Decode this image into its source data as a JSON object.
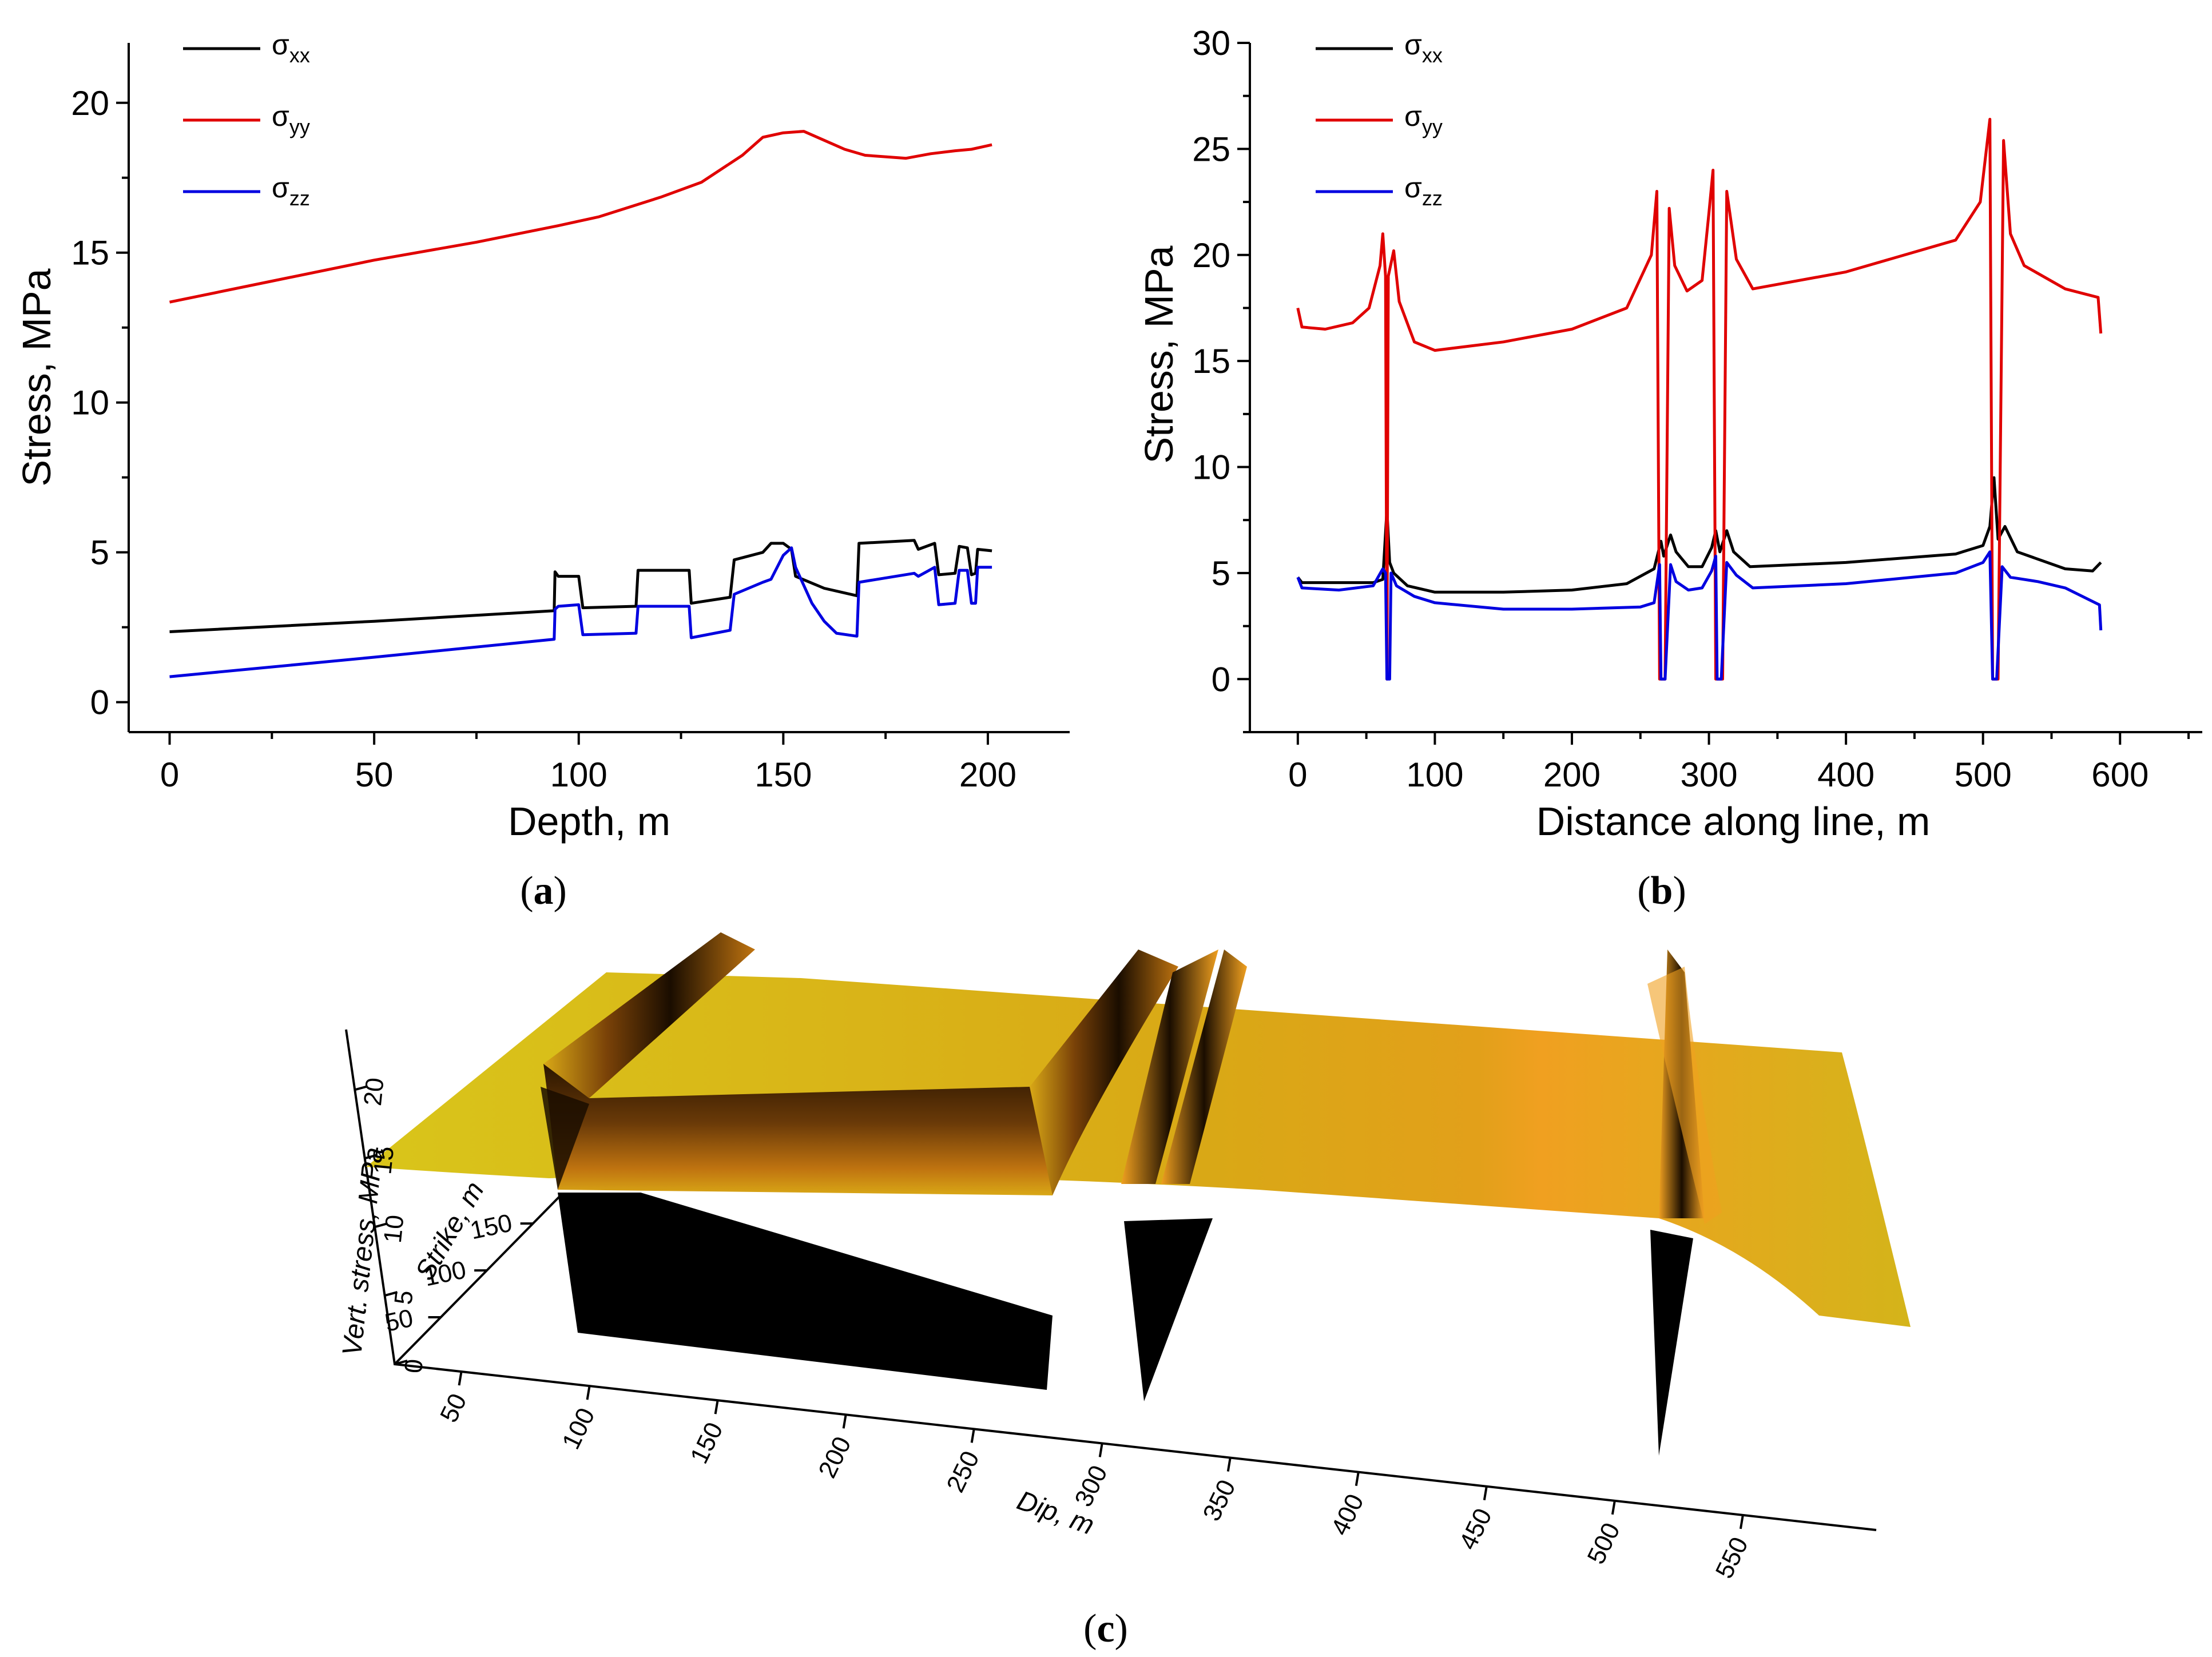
{
  "chart_data": [
    {
      "id": "a",
      "type": "line",
      "panel_label": "a",
      "xlabel": "Depth, m",
      "ylabel": "Stress, MPa",
      "xlim": [
        -10,
        220
      ],
      "ylim": [
        -1,
        22
      ],
      "xticks": [
        0,
        50,
        100,
        150,
        200
      ],
      "yticks": [
        0,
        5,
        10,
        15,
        20
      ],
      "legend_position": "top-left",
      "series": [
        {
          "name": "σxx",
          "symbol": "σ",
          "subscript": "xx",
          "color": "#000000",
          "points": [
            [
              0,
              2.35
            ],
            [
              50,
              2.7
            ],
            [
              94,
              3.05
            ],
            [
              94.2,
              4.35
            ],
            [
              95,
              4.2
            ],
            [
              100,
              4.2
            ],
            [
              101,
              3.15
            ],
            [
              114,
              3.2
            ],
            [
              114.5,
              4.4
            ],
            [
              127,
              4.4
            ],
            [
              127.5,
              3.3
            ],
            [
              137,
              3.5
            ],
            [
              138,
              4.75
            ],
            [
              145,
              5.0
            ],
            [
              147,
              5.3
            ],
            [
              150,
              5.3
            ],
            [
              152,
              5.1
            ],
            [
              153,
              4.2
            ],
            [
              160,
              3.8
            ],
            [
              168,
              3.55
            ],
            [
              168.5,
              5.3
            ],
            [
              182,
              5.4
            ],
            [
              183,
              5.1
            ],
            [
              187,
              5.3
            ],
            [
              188,
              4.25
            ],
            [
              192,
              4.3
            ],
            [
              193,
              5.2
            ],
            [
              195,
              5.15
            ],
            [
              196,
              4.25
            ],
            [
              197,
              4.3
            ],
            [
              197.5,
              5.1
            ],
            [
              201,
              5.05
            ]
          ]
        },
        {
          "name": "σyy",
          "symbol": "σ",
          "subscript": "yy",
          "color": "#e00000",
          "points": [
            [
              0,
              13.35
            ],
            [
              25,
              14.05
            ],
            [
              50,
              14.75
            ],
            [
              75,
              15.35
            ],
            [
              95,
              15.9
            ],
            [
              105,
              16.2
            ],
            [
              120,
              16.85
            ],
            [
              130,
              17.35
            ],
            [
              140,
              18.25
            ],
            [
              145,
              18.85
            ],
            [
              150,
              19.0
            ],
            [
              155,
              19.05
            ],
            [
              160,
              18.75
            ],
            [
              165,
              18.45
            ],
            [
              170,
              18.25
            ],
            [
              175,
              18.2
            ],
            [
              180,
              18.15
            ],
            [
              186,
              18.3
            ],
            [
              192,
              18.4
            ],
            [
              196,
              18.45
            ],
            [
              201,
              18.6
            ]
          ]
        },
        {
          "name": "σzz",
          "symbol": "σ",
          "subscript": "zz",
          "color": "#0000e0",
          "points": [
            [
              0,
              0.85
            ],
            [
              50,
              1.5
            ],
            [
              94,
              2.1
            ],
            [
              94.2,
              3.1
            ],
            [
              95,
              3.2
            ],
            [
              100,
              3.25
            ],
            [
              101,
              2.25
            ],
            [
              114,
              2.3
            ],
            [
              114.5,
              3.2
            ],
            [
              127,
              3.2
            ],
            [
              127.5,
              2.15
            ],
            [
              137,
              2.4
            ],
            [
              138,
              3.6
            ],
            [
              145,
              4.0
            ],
            [
              147,
              4.1
            ],
            [
              150,
              4.9
            ],
            [
              152,
              5.15
            ],
            [
              153,
              4.5
            ],
            [
              157,
              3.3
            ],
            [
              160,
              2.7
            ],
            [
              163,
              2.3
            ],
            [
              168,
              2.2
            ],
            [
              168.5,
              4.0
            ],
            [
              182,
              4.3
            ],
            [
              183,
              4.2
            ],
            [
              187,
              4.5
            ],
            [
              188,
              3.25
            ],
            [
              192,
              3.3
            ],
            [
              193,
              4.4
            ],
            [
              195,
              4.4
            ],
            [
              196,
              3.3
            ],
            [
              197,
              3.3
            ],
            [
              197.5,
              4.5
            ],
            [
              201,
              4.5
            ]
          ]
        }
      ]
    },
    {
      "id": "b",
      "type": "line",
      "panel_label": "b",
      "xlabel": "Distance along line, m",
      "ylabel": "Stress, MPa",
      "xlim": [
        -35,
        660
      ],
      "ylim": [
        -2.5,
        30
      ],
      "xticks": [
        0,
        100,
        200,
        300,
        400,
        500,
        600
      ],
      "yticks": [
        0,
        5,
        10,
        15,
        20,
        25,
        30
      ],
      "legend_position": "top-left",
      "series": [
        {
          "name": "σxx",
          "symbol": "σ",
          "subscript": "xx",
          "color": "#000000",
          "points": [
            [
              0,
              4.8
            ],
            [
              3,
              4.55
            ],
            [
              55,
              4.55
            ],
            [
              62,
              4.7
            ],
            [
              65,
              8.0
            ],
            [
              67,
              5.5
            ],
            [
              70,
              5.0
            ],
            [
              80,
              4.4
            ],
            [
              100,
              4.1
            ],
            [
              150,
              4.1
            ],
            [
              200,
              4.2
            ],
            [
              240,
              4.5
            ],
            [
              260,
              5.2
            ],
            [
              265,
              6.5
            ],
            [
              267,
              5.8
            ],
            [
              272,
              6.8
            ],
            [
              276,
              6.0
            ],
            [
              285,
              5.3
            ],
            [
              295,
              5.3
            ],
            [
              302,
              6.2
            ],
            [
              305,
              7.0
            ],
            [
              308,
              6.0
            ],
            [
              313,
              7.0
            ],
            [
              318,
              6.0
            ],
            [
              330,
              5.3
            ],
            [
              400,
              5.5
            ],
            [
              480,
              5.9
            ],
            [
              500,
              6.3
            ],
            [
              505,
              7.2
            ],
            [
              508,
              9.5
            ],
            [
              511,
              6.6
            ],
            [
              516,
              7.2
            ],
            [
              525,
              6.0
            ],
            [
              560,
              5.2
            ],
            [
              580,
              5.1
            ],
            [
              586,
              5.5
            ]
          ]
        },
        {
          "name": "σyy",
          "symbol": "σ",
          "subscript": "yy",
          "color": "#e00000",
          "points": [
            [
              0,
              17.5
            ],
            [
              3,
              16.6
            ],
            [
              20,
              16.5
            ],
            [
              40,
              16.8
            ],
            [
              52,
              17.5
            ],
            [
              60,
              19.5
            ],
            [
              62,
              21.0
            ],
            [
              64,
              19.0
            ],
            [
              65,
              0
            ],
            [
              66,
              19.0
            ],
            [
              70,
              20.2
            ],
            [
              74,
              17.8
            ],
            [
              85,
              15.9
            ],
            [
              100,
              15.5
            ],
            [
              150,
              15.9
            ],
            [
              200,
              16.5
            ],
            [
              240,
              17.5
            ],
            [
              258,
              20.0
            ],
            [
              262,
              23.0
            ],
            [
              264,
              0
            ],
            [
              268,
              0
            ],
            [
              271,
              22.2
            ],
            [
              275,
              19.5
            ],
            [
              284,
              18.3
            ],
            [
              295,
              18.8
            ],
            [
              300,
              22.0
            ],
            [
              303,
              24.0
            ],
            [
              305,
              0
            ],
            [
              310,
              0
            ],
            [
              313,
              23.0
            ],
            [
              320,
              19.8
            ],
            [
              332,
              18.4
            ],
            [
              400,
              19.2
            ],
            [
              480,
              20.7
            ],
            [
              498,
              22.5
            ],
            [
              505,
              26.4
            ],
            [
              507,
              0
            ],
            [
              511,
              0
            ],
            [
              515,
              25.4
            ],
            [
              520,
              21.0
            ],
            [
              530,
              19.5
            ],
            [
              560,
              18.4
            ],
            [
              584,
              18.0
            ],
            [
              586,
              16.3
            ]
          ]
        },
        {
          "name": "σzz",
          "symbol": "σ",
          "subscript": "zz",
          "color": "#0000e0",
          "points": [
            [
              0,
              4.8
            ],
            [
              3,
              4.3
            ],
            [
              30,
              4.2
            ],
            [
              55,
              4.4
            ],
            [
              62,
              5.2
            ],
            [
              64,
              5.0
            ],
            [
              65,
              0
            ],
            [
              67,
              0
            ],
            [
              68,
              5.0
            ],
            [
              72,
              4.4
            ],
            [
              85,
              3.9
            ],
            [
              100,
              3.6
            ],
            [
              150,
              3.3
            ],
            [
              200,
              3.3
            ],
            [
              250,
              3.4
            ],
            [
              260,
              3.6
            ],
            [
              264,
              5.4
            ],
            [
              265,
              0
            ],
            [
              268,
              0
            ],
            [
              272,
              5.4
            ],
            [
              276,
              4.6
            ],
            [
              285,
              4.2
            ],
            [
              295,
              4.3
            ],
            [
              302,
              5.1
            ],
            [
              305,
              5.8
            ],
            [
              306,
              0
            ],
            [
              309,
              0
            ],
            [
              313,
              5.5
            ],
            [
              320,
              4.9
            ],
            [
              332,
              4.3
            ],
            [
              400,
              4.5
            ],
            [
              480,
              5.0
            ],
            [
              500,
              5.5
            ],
            [
              505,
              6.0
            ],
            [
              507,
              0
            ],
            [
              510,
              0
            ],
            [
              514,
              5.3
            ],
            [
              520,
              4.8
            ],
            [
              540,
              4.6
            ],
            [
              560,
              4.3
            ],
            [
              585,
              3.5
            ],
            [
              586,
              2.3
            ]
          ]
        }
      ]
    },
    {
      "id": "c",
      "type": "surface3d",
      "panel_label": "c",
      "zlabel": "Vert. stress, MPa",
      "ylabel": "Strike, m",
      "xlabel": "Dip, m",
      "zticks": [
        "0",
        "5",
        "10",
        "15",
        "20"
      ],
      "yticks": [
        "50",
        "100",
        "150"
      ],
      "xticks": [
        "50",
        "100",
        "150",
        "200",
        "250",
        "300",
        "350",
        "400",
        "450",
        "500",
        "550"
      ],
      "colors": {
        "surface": "#d8b418",
        "peak": "#b86a08",
        "dark": "#1a0d00",
        "shadow": "#000000"
      }
    }
  ]
}
